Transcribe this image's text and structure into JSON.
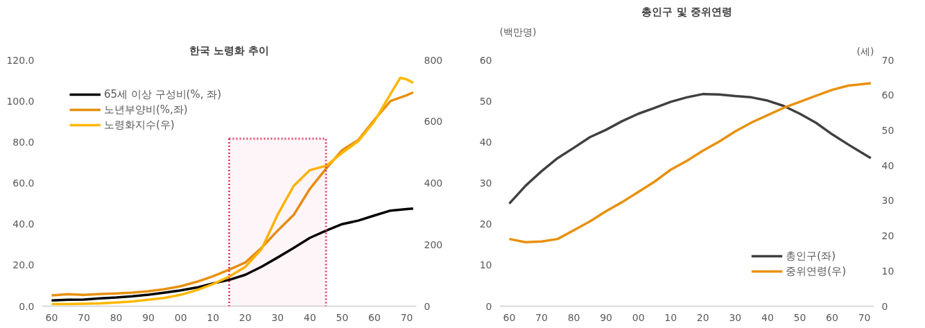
{
  "chart_data": [
    {
      "type": "line",
      "title": "한국 노령화 추이",
      "series": [
        {
          "name": "65세 이상 구성비(%, 좌)",
          "color": "#000000",
          "x": [
            1960,
            1965,
            1970,
            1975,
            1980,
            1985,
            1990,
            1995,
            2000,
            2005,
            2010,
            2015,
            2020,
            2025,
            2030,
            2035,
            2040,
            2045,
            2050,
            2055,
            2060,
            2065,
            2070,
            2072
          ],
          "values": [
            2.8,
            3.1,
            3.2,
            3.8,
            4.2,
            4.8,
            5.6,
            6.6,
            7.7,
            9.1,
            11.1,
            12.8,
            15.3,
            19.2,
            23.7,
            28.4,
            33.3,
            36.8,
            40.0,
            41.7,
            44.2,
            46.6,
            47.3,
            47.6
          ]
        },
        {
          "name": "노년부양비(%,좌)",
          "color": "#e8900c",
          "x": [
            1960,
            1965,
            1970,
            1975,
            1980,
            1985,
            1990,
            1995,
            2000,
            2005,
            2010,
            2015,
            2020,
            2025,
            2030,
            2035,
            2040,
            2045,
            2050,
            2055,
            2060,
            2065,
            2070,
            2072
          ],
          "values": [
            5.2,
            5.8,
            5.5,
            5.9,
            6.2,
            6.6,
            7.3,
            8.3,
            9.7,
            11.9,
            14.6,
            17.8,
            21.3,
            28.4,
            36.8,
            44.5,
            57.2,
            67.0,
            76.1,
            81.0,
            90.9,
            100.0,
            102.8,
            104.2
          ]
        },
        {
          "name": "노령화지수(우)",
          "color": "#ffb800",
          "axis": "y2",
          "x": [
            1960,
            1965,
            1970,
            1975,
            1980,
            1985,
            1990,
            1995,
            2000,
            2005,
            2010,
            2015,
            2020,
            2025,
            2030,
            2035,
            2040,
            2045,
            2050,
            2055,
            2060,
            2065,
            2068,
            2070,
            2072
          ],
          "values": [
            7,
            7,
            8,
            9,
            12,
            15,
            21,
            27,
            37,
            52,
            72,
            96,
            128,
            185,
            297,
            391,
            442,
            456,
            498,
            536,
            601,
            690,
            742,
            737,
            726
          ]
        }
      ],
      "xlim": [
        1957,
        2073
      ],
      "xticks": [
        {
          "value": 1960,
          "label": "60"
        },
        {
          "value": 1970,
          "label": "70"
        },
        {
          "value": 1980,
          "label": "80"
        },
        {
          "value": 1990,
          "label": "90"
        },
        {
          "value": 2000,
          "label": "00"
        },
        {
          "value": 2010,
          "label": "10"
        },
        {
          "value": 2020,
          "label": "20"
        },
        {
          "value": 2030,
          "label": "30"
        },
        {
          "value": 2040,
          "label": "40"
        },
        {
          "value": 2050,
          "label": "50"
        },
        {
          "value": 2060,
          "label": "60"
        },
        {
          "value": 2070,
          "label": "70"
        }
      ],
      "ylim": [
        0,
        120
      ],
      "yticks": [
        {
          "value": 0,
          "label": "0.0"
        },
        {
          "value": 20,
          "label": "20.0"
        },
        {
          "value": 40,
          "label": "40.0"
        },
        {
          "value": 60,
          "label": "60.0"
        },
        {
          "value": 80,
          "label": "80.0"
        },
        {
          "value": 100,
          "label": "100.0"
        },
        {
          "value": 120,
          "label": "120.0"
        }
      ],
      "y2lim": [
        0,
        800
      ],
      "y2ticks": [
        0,
        200,
        400,
        600,
        800
      ],
      "bands": [
        {
          "axis": "x",
          "from": 2015,
          "to": 2045,
          "color": "#e0446a"
        }
      ],
      "legend": "top left",
      "grid": false,
      "line_style": "solid",
      "marker": "none"
    },
    {
      "type": "line",
      "title": "총인구 및 중위연령",
      "ylabel": "(백만명)",
      "y2label": "(세)",
      "x": [
        1960,
        1965,
        1970,
        1975,
        1980,
        1985,
        1990,
        1995,
        2000,
        2005,
        2010,
        2015,
        2020,
        2025,
        2030,
        2035,
        2040,
        2045,
        2050,
        2055,
        2060,
        2065,
        2070,
        2072
      ],
      "series": [
        {
          "name": "총인구(좌)",
          "color": "#404040",
          "values": [
            25.0,
            29.3,
            32.9,
            36.1,
            38.6,
            41.2,
            43.0,
            45.1,
            46.9,
            48.3,
            49.8,
            50.9,
            51.7,
            51.6,
            51.2,
            50.9,
            50.1,
            48.8,
            46.9,
            44.7,
            41.9,
            39.4,
            37.0,
            36.1
          ]
        },
        {
          "name": "중위연령(우)",
          "color": "#e8900c",
          "axis": "y2",
          "values": [
            19.1,
            18.2,
            18.4,
            19.1,
            21.6,
            24.1,
            27.0,
            29.6,
            32.5,
            35.4,
            38.8,
            41.3,
            44.2,
            46.8,
            49.7,
            52.2,
            54.3,
            56.4,
            58.1,
            59.8,
            61.5,
            62.7,
            63.2,
            63.4
          ]
        }
      ],
      "xlim": [
        1957,
        2073
      ],
      "xticks": [
        {
          "value": 1960,
          "label": "60"
        },
        {
          "value": 1970,
          "label": "70"
        },
        {
          "value": 1980,
          "label": "80"
        },
        {
          "value": 1990,
          "label": "90"
        },
        {
          "value": 2000,
          "label": "00"
        },
        {
          "value": 2010,
          "label": "10"
        },
        {
          "value": 2020,
          "label": "20"
        },
        {
          "value": 2030,
          "label": "30"
        },
        {
          "value": 2040,
          "label": "40"
        },
        {
          "value": 2050,
          "label": "50"
        },
        {
          "value": 2060,
          "label": "60"
        },
        {
          "value": 2070,
          "label": "70"
        }
      ],
      "ylim": [
        0,
        60
      ],
      "yticks": [
        0,
        10,
        20,
        30,
        40,
        50,
        60
      ],
      "y2lim": [
        0,
        70
      ],
      "y2ticks": [
        0,
        10,
        20,
        30,
        40,
        50,
        60,
        70
      ],
      "legend": "bottom right",
      "grid": false,
      "line_style": "solid",
      "marker": "none"
    }
  ]
}
